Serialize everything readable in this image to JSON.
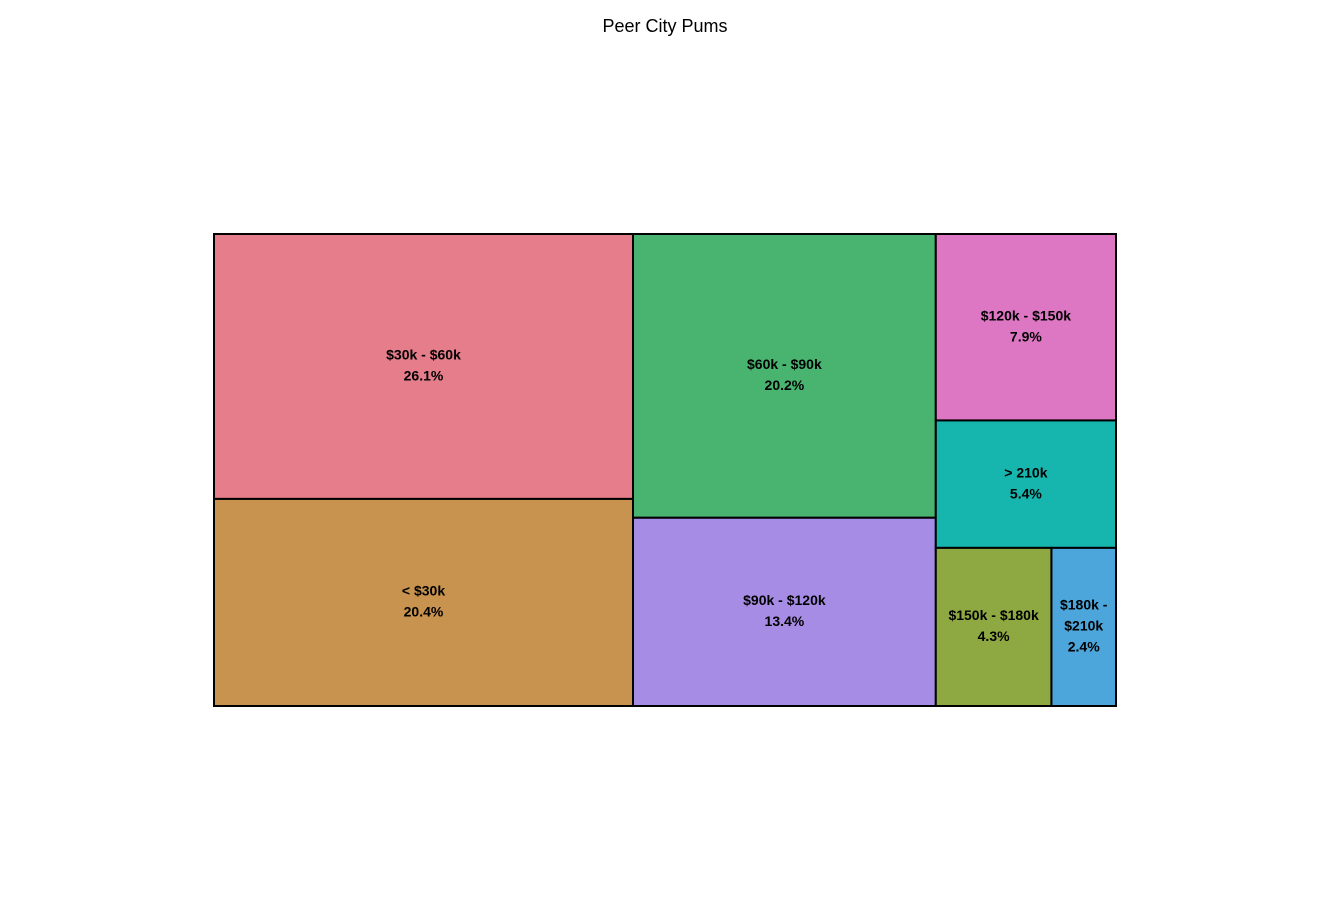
{
  "chart_data": {
    "type": "treemap",
    "title": "Peer City Pums",
    "tiles": [
      {
        "label_lines": [
          "$30k - $60k"
        ],
        "percent_label": "26.1%",
        "value": 26.1,
        "color": "#E57D8A"
      },
      {
        "label_lines": [
          "< $30k"
        ],
        "percent_label": "20.4%",
        "value": 20.4,
        "color": "#C8924F"
      },
      {
        "label_lines": [
          "$60k - $90k"
        ],
        "percent_label": "20.2%",
        "value": 20.2,
        "color": "#48B470"
      },
      {
        "label_lines": [
          "$90k - $120k"
        ],
        "percent_label": "13.4%",
        "value": 13.4,
        "color": "#A78CE6"
      },
      {
        "label_lines": [
          "$120k - $150k"
        ],
        "percent_label": "7.9%",
        "value": 7.9,
        "color": "#DE77C3"
      },
      {
        "label_lines": [
          "> 210k"
        ],
        "percent_label": "5.4%",
        "value": 5.4,
        "color": "#16B6AE"
      },
      {
        "label_lines": [
          "$150k - $180k"
        ],
        "percent_label": "4.3%",
        "value": 4.3,
        "color": "#8FA942"
      },
      {
        "label_lines": [
          "$180k -",
          "$210k"
        ],
        "percent_label": "2.4%",
        "value": 2.4,
        "color": "#4DA6DB"
      }
    ]
  }
}
